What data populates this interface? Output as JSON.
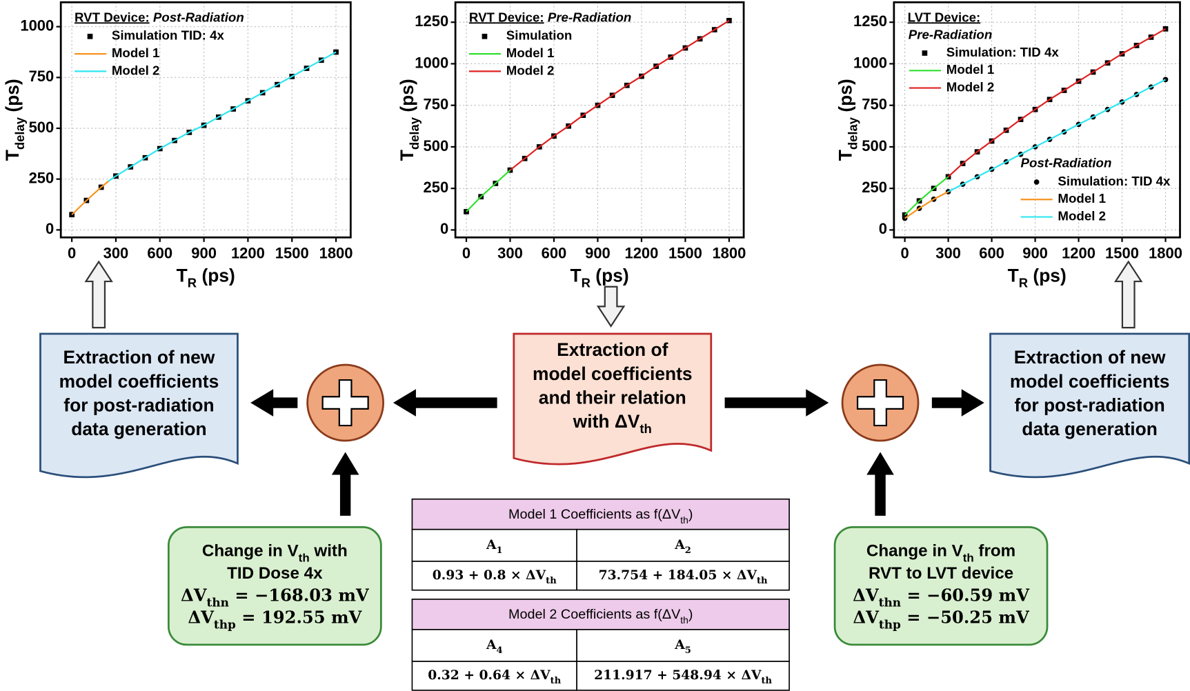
{
  "chart_data": [
    {
      "type": "line",
      "title": "RVT Device:",
      "subtitle": "Post-Radiation",
      "xlabel": [
        "T",
        "R",
        " (ps)"
      ],
      "ylabel": [
        "T",
        "delay",
        " (ps)"
      ],
      "xlim": [
        -75,
        1900
      ],
      "ylim": [
        -37,
        1120
      ],
      "xticks": [
        0,
        300,
        600,
        900,
        1200,
        1500,
        1800
      ],
      "yticks": [
        0,
        250,
        500,
        750,
        1000
      ],
      "grid": true,
      "series": [
        {
          "name": "Simulation TID: 4x",
          "color": "#000000",
          "marker": "square",
          "x": [
            0,
            100,
            200,
            300,
            400,
            500,
            600,
            700,
            800,
            900,
            1000,
            1100,
            1200,
            1300,
            1400,
            1500,
            1600,
            1700,
            1800
          ],
          "values": [
            75,
            145,
            210,
            265,
            310,
            355,
            400,
            440,
            480,
            515,
            555,
            595,
            635,
            675,
            715,
            755,
            795,
            835,
            875
          ]
        },
        {
          "name": "Model 1",
          "color": "#f7931e",
          "x": [
            0,
            100,
            200,
            250
          ],
          "values": [
            75,
            145,
            210,
            240
          ]
        },
        {
          "name": "Model 2",
          "color": "#2ee6f0",
          "x": [
            250,
            300,
            400,
            500,
            600,
            700,
            800,
            900,
            1000,
            1100,
            1200,
            1300,
            1400,
            1500,
            1600,
            1700,
            1800
          ],
          "values": [
            240,
            265,
            310,
            355,
            400,
            440,
            480,
            515,
            555,
            595,
            635,
            675,
            715,
            755,
            795,
            835,
            875
          ]
        }
      ]
    },
    {
      "type": "line",
      "title": "RVT Device:",
      "subtitle": "Pre-Radiation",
      "xlabel": [
        "T",
        "R",
        " (ps)"
      ],
      "ylabel": [
        "T",
        "delay",
        " (ps)"
      ],
      "xlim": [
        -75,
        1900
      ],
      "ylim": [
        -45,
        1370
      ],
      "xticks": [
        0,
        300,
        600,
        900,
        1200,
        1500,
        1800
      ],
      "yticks": [
        0,
        250,
        500,
        750,
        1000,
        1250
      ],
      "grid": true,
      "series": [
        {
          "name": "Simulation",
          "color": "#000000",
          "marker": "square",
          "x": [
            0,
            100,
            200,
            300,
            400,
            500,
            600,
            700,
            800,
            900,
            1000,
            1100,
            1200,
            1300,
            1400,
            1500,
            1600,
            1700,
            1800
          ],
          "values": [
            110,
            200,
            280,
            360,
            430,
            500,
            565,
            625,
            690,
            750,
            810,
            870,
            925,
            985,
            1040,
            1095,
            1150,
            1205,
            1260
          ]
        },
        {
          "name": "Model 1",
          "color": "#2fe02f",
          "x": [
            0,
            100,
            200,
            300
          ],
          "values": [
            110,
            200,
            280,
            360
          ]
        },
        {
          "name": "Model 2",
          "color": "#e02020",
          "x": [
            300,
            400,
            500,
            600,
            700,
            800,
            900,
            1000,
            1100,
            1200,
            1300,
            1400,
            1500,
            1600,
            1700,
            1800
          ],
          "values": [
            360,
            430,
            500,
            565,
            625,
            690,
            750,
            810,
            870,
            925,
            985,
            1040,
            1095,
            1150,
            1205,
            1260
          ]
        }
      ]
    },
    {
      "type": "line",
      "title": "LVT Device:",
      "subtitle": "Pre-Radiation",
      "annotations": [
        "Post-Radiation"
      ],
      "xlabel": [
        "T",
        "R",
        " (ps)"
      ],
      "ylabel": [
        "T",
        "delay",
        " (ps)"
      ],
      "xlim": [
        -75,
        1900
      ],
      "ylim": [
        -45,
        1370
      ],
      "xticks": [
        0,
        300,
        600,
        900,
        1200,
        1500,
        1800
      ],
      "yticks": [
        0,
        250,
        500,
        750,
        1000,
        1250
      ],
      "grid": true,
      "series": [
        {
          "name": "Simulation: TID 4x",
          "color": "#000000",
          "marker": "square",
          "x": [
            0,
            100,
            200,
            300,
            400,
            500,
            600,
            700,
            800,
            900,
            1000,
            1100,
            1200,
            1300,
            1400,
            1500,
            1600,
            1700,
            1800
          ],
          "values": [
            90,
            175,
            250,
            320,
            400,
            470,
            535,
            600,
            665,
            725,
            785,
            840,
            895,
            950,
            1005,
            1060,
            1110,
            1160,
            1210
          ]
        },
        {
          "name": "Model 1",
          "color": "#2fe02f",
          "x": [
            0,
            100,
            200,
            300
          ],
          "values": [
            90,
            175,
            250,
            320
          ]
        },
        {
          "name": "Model 2",
          "color": "#e02020",
          "x": [
            300,
            400,
            500,
            600,
            700,
            800,
            900,
            1000,
            1100,
            1200,
            1300,
            1400,
            1500,
            1600,
            1700,
            1800
          ],
          "values": [
            320,
            400,
            470,
            535,
            600,
            665,
            725,
            785,
            840,
            895,
            950,
            1005,
            1060,
            1110,
            1160,
            1210
          ]
        },
        {
          "name": "Simulation: TID 4x",
          "color": "#000000",
          "marker": "circle",
          "x": [
            0,
            100,
            200,
            300,
            400,
            500,
            600,
            700,
            800,
            900,
            1000,
            1100,
            1200,
            1300,
            1400,
            1500,
            1600,
            1700,
            1800
          ],
          "values": [
            70,
            130,
            185,
            230,
            275,
            320,
            365,
            410,
            455,
            500,
            545,
            590,
            635,
            680,
            725,
            770,
            815,
            860,
            905
          ]
        },
        {
          "name": "Model 1",
          "color": "#f7931e",
          "x": [
            0,
            100,
            200,
            300
          ],
          "values": [
            70,
            130,
            185,
            230
          ]
        },
        {
          "name": "Model 2",
          "color": "#2ee6f0",
          "x": [
            300,
            400,
            500,
            600,
            700,
            800,
            900,
            1000,
            1100,
            1200,
            1300,
            1400,
            1500,
            1600,
            1700,
            1800
          ],
          "values": [
            230,
            275,
            320,
            365,
            410,
            455,
            500,
            545,
            590,
            635,
            680,
            725,
            770,
            815,
            860,
            905
          ]
        }
      ]
    }
  ],
  "diagram": {
    "left_box": {
      "lines": [
        "Extraction of new",
        "model coefficients",
        "for post-radiation",
        "data generation"
      ]
    },
    "center_box": {
      "lines": [
        "Extraction of",
        "model coefficients",
        "and their relation",
        [
          "with ΔV",
          "th"
        ]
      ]
    },
    "right_box": {
      "lines": [
        "Extraction of new",
        "model coefficients",
        "for post-radiation",
        "data generation"
      ]
    },
    "left_change": {
      "lines": [
        [
          "Change in V",
          "th",
          " with"
        ],
        "TID Dose 4x",
        [
          "ΔV",
          "thn",
          " = −168.03 mV"
        ],
        [
          "ΔV",
          "thp",
          " = 192.55 mV"
        ]
      ]
    },
    "right_change": {
      "lines": [
        [
          "Change in V",
          "th",
          " from"
        ],
        "RVT to LVT device",
        [
          "ΔV",
          "thn",
          " = −60.59 mV"
        ],
        [
          "ΔV",
          "thp",
          " = −50.25 mV"
        ]
      ]
    },
    "tables": [
      {
        "title": [
          "Model 1 Coefficients as f(ΔV",
          "th",
          ")"
        ],
        "headers": [
          [
            "A",
            "1"
          ],
          [
            "A",
            "2"
          ]
        ],
        "rows": [
          [
            [
              "0.93 + 0.8 × ΔV",
              "th"
            ],
            [
              "73.754 + 184.05 × ΔV",
              "th"
            ]
          ]
        ]
      },
      {
        "title": [
          "Model 2 Coefficients as f(ΔV",
          "th",
          ")"
        ],
        "headers": [
          [
            "A",
            "4"
          ],
          [
            "A",
            "5"
          ]
        ],
        "rows": [
          [
            [
              "0.32 + 0.64 × ΔV",
              "th"
            ],
            [
              "211.917 + 548.94 × ΔV",
              "th"
            ]
          ]
        ]
      }
    ]
  }
}
